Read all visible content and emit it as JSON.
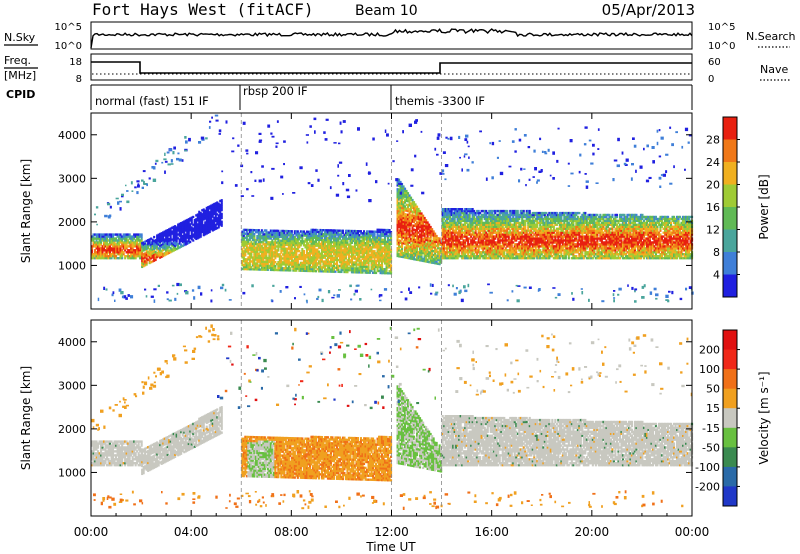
{
  "header": {
    "station": "Fort Hays West (fitACF)",
    "beam": "Beam 10",
    "date": "05/Apr/2013"
  },
  "strip": {
    "nsky_label": "N.Sky",
    "nsky_ticks": [
      "10^5",
      "10^0"
    ],
    "nsearch_label": "N.Search",
    "nsearch_ticks": [
      "10^5",
      "10^0"
    ],
    "freq_label": "Freq.",
    "freq_unit": "[MHz]",
    "freq_ticks": [
      "18",
      "8"
    ],
    "nave_label": "Nave",
    "nave_ticks": [
      "60",
      "0"
    ],
    "cpid_label": "CPID",
    "modes": [
      {
        "label": "normal (fast) 151 IF",
        "start": 0,
        "end": 6
      },
      {
        "label": "rbsp 200 IF",
        "start": 6,
        "end": 12
      },
      {
        "label": "themis -3300 IF",
        "start": 12,
        "end": 24
      }
    ]
  },
  "chart_data": [
    {
      "type": "heatmap",
      "name": "power",
      "ylabel": "Slant Range [km]",
      "xlabel": "",
      "xlim": [
        0,
        24
      ],
      "ylim": [
        0,
        4500
      ],
      "yticks": [
        1000,
        2000,
        3000,
        4000
      ],
      "colorbar_label": "Power [dB]",
      "colorbar_ticks": [
        "28",
        "24",
        "20",
        "16",
        "12",
        "8",
        "4"
      ],
      "colors": [
        "#2020e0",
        "#3f7fd8",
        "#4aa59c",
        "#60ba55",
        "#9fcb35",
        "#f0b020",
        "#f07818",
        "#e82010"
      ]
    },
    {
      "type": "heatmap",
      "name": "velocity",
      "ylabel": "Slant Range [km]",
      "xlabel": "Time UT",
      "xlim": [
        0,
        24
      ],
      "ylim": [
        0,
        4500
      ],
      "yticks": [
        1000,
        2000,
        3000,
        4000
      ],
      "xticks": [
        "00:00",
        "04:00",
        "08:00",
        "12:00",
        "16:00",
        "20:00",
        "00:00"
      ],
      "colorbar_label": "Velocity [m s⁻¹]",
      "colorbar_ticks": [
        "200",
        "100",
        "50",
        "15",
        "-15",
        "-50",
        "-100",
        "-200"
      ],
      "colors": [
        "#2038c8",
        "#2a6aa8",
        "#3a8a50",
        "#68c040",
        "#c8c8c0",
        "#f0a020",
        "#f07018",
        "#f02818",
        "#e01010"
      ]
    }
  ]
}
